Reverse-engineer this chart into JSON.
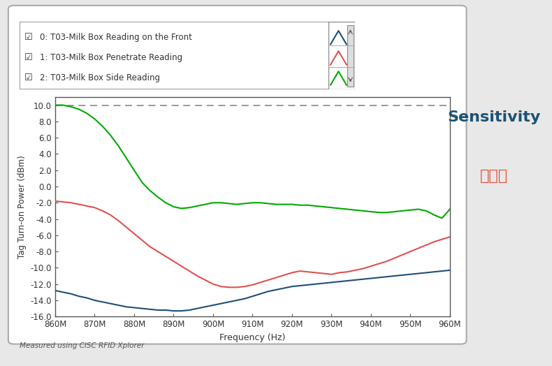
{
  "title_en": "Sensitivity",
  "title_cn": "灵敏度",
  "xlabel": "Frequency (Hz)",
  "ylabel": "Tag Turn-on Power (dBm)",
  "footnote": "Measured using CISC RFID Xplorer",
  "dashed_line_y": 10.0,
  "ylim": [
    -16.0,
    11.0
  ],
  "yticks": [
    10.0,
    8.0,
    6.0,
    4.0,
    2.0,
    0.0,
    -2.0,
    -4.0,
    -6.0,
    -8.0,
    -10.0,
    -12.0,
    -14.0,
    -16.0
  ],
  "xtick_labels": [
    "860M",
    "870M",
    "880M",
    "890M",
    "900M",
    "910M",
    "920M",
    "930M",
    "940M",
    "950M",
    "960M"
  ],
  "freq_values": [
    860,
    862,
    864,
    866,
    868,
    870,
    872,
    874,
    876,
    878,
    880,
    882,
    884,
    886,
    888,
    890,
    892,
    894,
    896,
    898,
    900,
    902,
    904,
    906,
    908,
    910,
    912,
    914,
    916,
    918,
    920,
    922,
    924,
    926,
    928,
    930,
    932,
    934,
    936,
    938,
    940,
    942,
    944,
    946,
    948,
    950,
    952,
    954,
    956,
    958,
    960
  ],
  "blue_data": [
    -12.8,
    -13.0,
    -13.2,
    -13.5,
    -13.7,
    -14.0,
    -14.2,
    -14.4,
    -14.6,
    -14.8,
    -14.9,
    -15.0,
    -15.1,
    -15.2,
    -15.2,
    -15.3,
    -15.3,
    -15.2,
    -15.0,
    -14.8,
    -14.6,
    -14.4,
    -14.2,
    -14.0,
    -13.8,
    -13.5,
    -13.2,
    -12.9,
    -12.7,
    -12.5,
    -12.3,
    -12.2,
    -12.1,
    -12.0,
    -11.9,
    -11.8,
    -11.7,
    -11.6,
    -11.5,
    -11.4,
    -11.3,
    -11.2,
    -11.1,
    -11.0,
    -10.9,
    -10.8,
    -10.7,
    -10.6,
    -10.5,
    -10.4,
    -10.3
  ],
  "red_data": [
    -1.8,
    -1.9,
    -2.0,
    -2.2,
    -2.4,
    -2.6,
    -3.0,
    -3.5,
    -4.2,
    -5.0,
    -5.8,
    -6.6,
    -7.4,
    -8.0,
    -8.6,
    -9.2,
    -9.8,
    -10.4,
    -11.0,
    -11.5,
    -12.0,
    -12.3,
    -12.4,
    -12.4,
    -12.3,
    -12.1,
    -11.8,
    -11.5,
    -11.2,
    -10.9,
    -10.6,
    -10.4,
    -10.5,
    -10.6,
    -10.7,
    -10.8,
    -10.6,
    -10.5,
    -10.3,
    -10.1,
    -9.8,
    -9.5,
    -9.2,
    -8.8,
    -8.4,
    -8.0,
    -7.6,
    -7.2,
    -6.8,
    -6.5,
    -6.2
  ],
  "green_data": [
    10.0,
    10.0,
    9.8,
    9.5,
    9.0,
    8.3,
    7.4,
    6.3,
    5.0,
    3.5,
    2.0,
    0.5,
    -0.5,
    -1.3,
    -2.0,
    -2.5,
    -2.7,
    -2.6,
    -2.4,
    -2.2,
    -2.0,
    -2.0,
    -2.1,
    -2.2,
    -2.1,
    -2.0,
    -2.0,
    -2.1,
    -2.2,
    -2.2,
    -2.2,
    -2.3,
    -2.3,
    -2.4,
    -2.5,
    -2.6,
    -2.7,
    -2.8,
    -2.9,
    -3.0,
    -3.1,
    -3.2,
    -3.2,
    -3.1,
    -3.0,
    -2.9,
    -2.8,
    -3.0,
    -3.5,
    -3.9,
    -2.8
  ],
  "blue_color": "#1f4e79",
  "red_color": "#e05050",
  "green_color": "#00aa00",
  "legend_labels": [
    "0: T03-Milk Box Reading on the Front",
    "1: T03-Milk Box Penetrate Reading",
    "2: T03-Milk Box Side Reading"
  ],
  "fig_bg_color": "#e8e8e8",
  "plot_bg_color": "#ffffff",
  "outer_box_color": "#aaaaaa",
  "title_en_color": "#1a5276",
  "title_cn_color": "#e74c3c"
}
